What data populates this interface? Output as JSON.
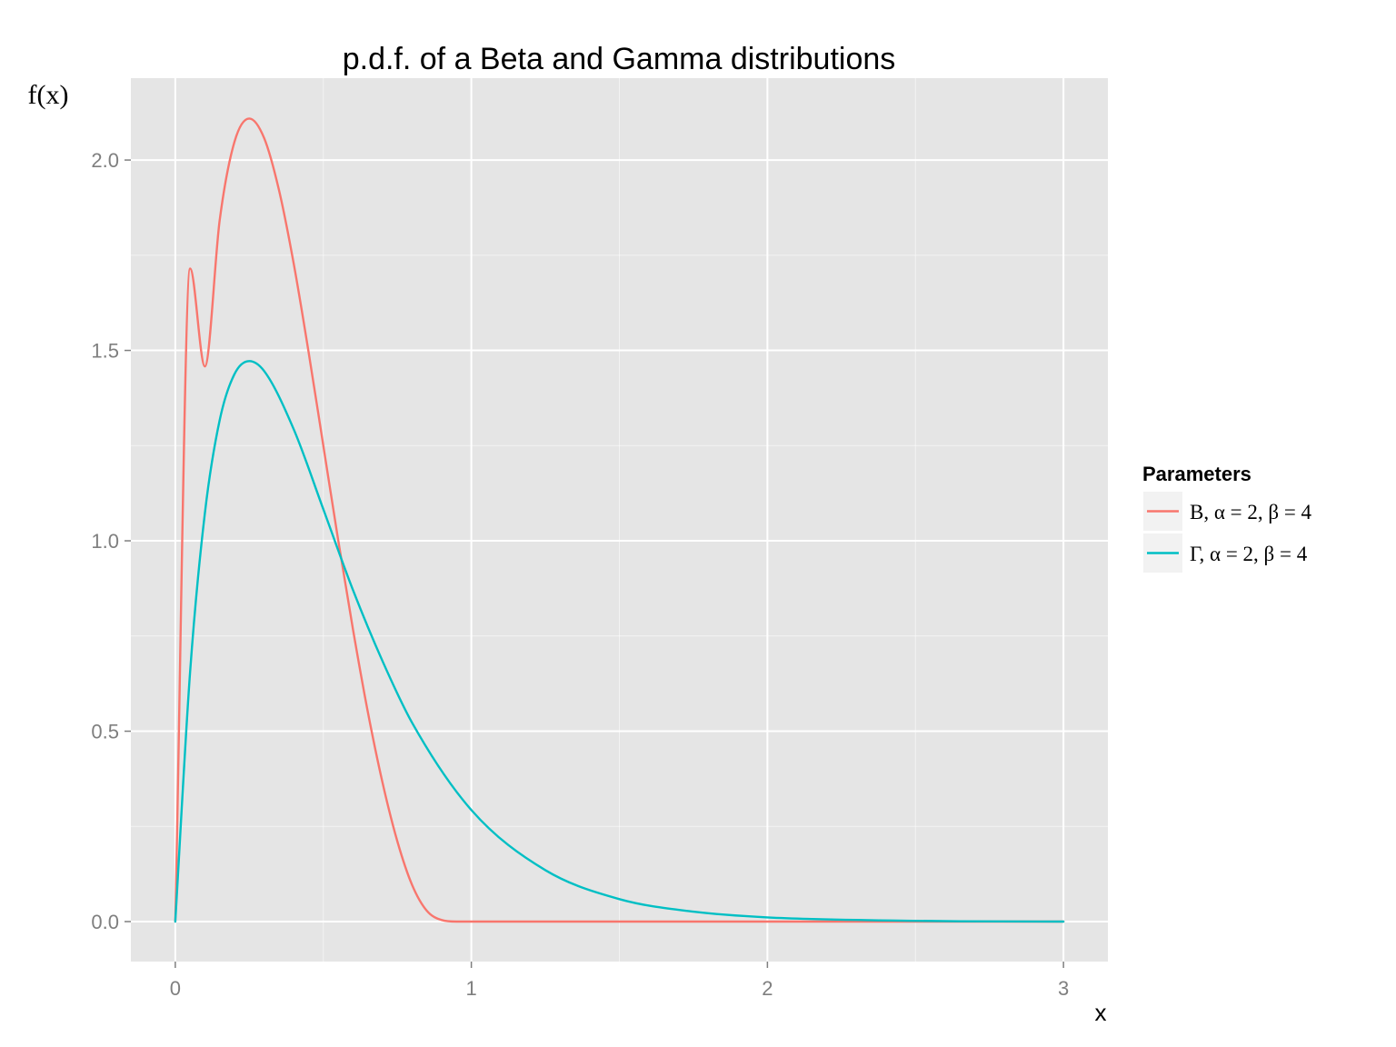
{
  "chart_data": {
    "type": "line",
    "title": "p.d.f. of a Beta and Gamma distributions",
    "xlabel": "x",
    "ylabel": "f(x)",
    "xlim": [
      -0.15,
      3.15
    ],
    "ylim": [
      -0.105,
      2.215
    ],
    "x_ticks": [
      0,
      1,
      2,
      3
    ],
    "x_tick_labels": [
      "0",
      "1",
      "2",
      "3"
    ],
    "y_ticks": [
      0.0,
      0.5,
      1.0,
      1.5,
      2.0
    ],
    "y_tick_labels": [
      "0.0",
      "0.5",
      "1.0",
      "1.5",
      "2.0"
    ],
    "x_minor_ticks": [
      0.5,
      1.5,
      2.5
    ],
    "y_minor_ticks": [
      0.25,
      0.75,
      1.25,
      1.75
    ],
    "grid": true,
    "panel_background": "#e5e5e5",
    "grid_color": "#ffffff",
    "legend": {
      "title": "Parameters",
      "position": "right"
    },
    "series": [
      {
        "name": "Β, α = 2, β = 4",
        "color": "#f8766d",
        "x": [
          0,
          0.05,
          0.1,
          0.15,
          0.2,
          0.25,
          0.3,
          0.35,
          0.4,
          0.45,
          0.5,
          0.55,
          0.6,
          0.65,
          0.7,
          0.75,
          0.8,
          0.85,
          0.9,
          0.95,
          1.0,
          1.5,
          2.0,
          2.5,
          3.0
        ],
        "values": [
          0.0,
          1.715,
          1.458,
          1.842,
          2.048,
          2.109,
          2.058,
          1.922,
          1.728,
          1.497,
          1.25,
          1.003,
          0.768,
          0.552,
          0.365,
          0.211,
          0.096,
          0.028,
          0.004,
          0.0,
          0.0,
          0.0,
          0.0,
          0.0,
          0.0
        ]
      },
      {
        "name": "Γ, α = 2, β = 4",
        "color": "#00bfc4",
        "x": [
          0,
          0.05,
          0.1,
          0.15,
          0.2,
          0.25,
          0.3,
          0.4,
          0.5,
          0.6,
          0.7,
          0.8,
          1.0,
          1.25,
          1.5,
          1.75,
          2.0,
          2.5,
          3.0
        ],
        "values": [
          0.0,
          0.655,
          1.073,
          1.317,
          1.438,
          1.472,
          1.446,
          1.293,
          1.083,
          0.871,
          0.684,
          0.522,
          0.293,
          0.135,
          0.059,
          0.026,
          0.011,
          0.002,
          0.0
        ]
      }
    ]
  }
}
